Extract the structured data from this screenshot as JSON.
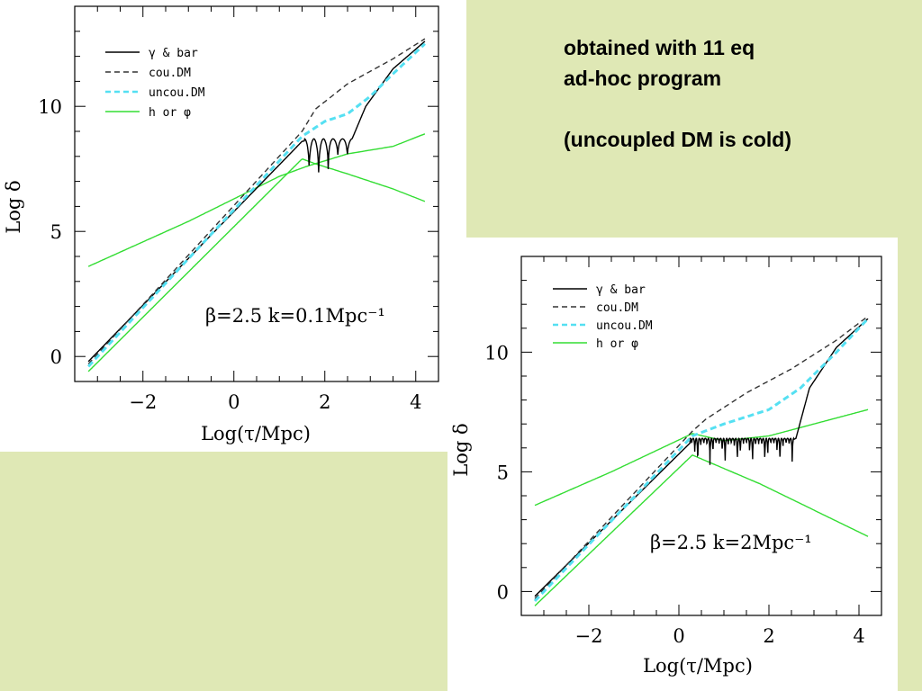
{
  "notes": {
    "line1": "obtained with 11 eq",
    "line2": "ad-hoc program",
    "line3": "(uncoupled DM is cold)"
  },
  "colors": {
    "background": "#dfe8b5",
    "panel": "#ffffff",
    "gamma_bar": "#000000",
    "cou_dm": "#333333",
    "uncou_dm": "#55e0f2",
    "h_phi": "#33dd33"
  },
  "chart_data": [
    {
      "type": "line",
      "title": "",
      "xlabel": "Log(τ/Mpc)",
      "ylabel": "Log δ",
      "xlim": [
        -3.5,
        4.5
      ],
      "ylim": [
        -1,
        14
      ],
      "x_ticks": [
        -2,
        0,
        2,
        4
      ],
      "x_tick_labels": [
        "−2",
        "0",
        "2",
        "4"
      ],
      "y_ticks": [
        0,
        5,
        10
      ],
      "y_tick_labels": [
        "0",
        "5",
        "10"
      ],
      "grid": false,
      "legend_position": "top-left",
      "annotation": "β=2.5   k=0.1Mpc⁻¹",
      "series": [
        {
          "name": "γ & bar",
          "color": "#000000",
          "dash": "solid",
          "oscillating": true,
          "x": [
            -3.2,
            1.5,
            1.8,
            1.8,
            2.0,
            2.0,
            2.15,
            2.15,
            2.3,
            2.3,
            2.45,
            2.45,
            2.6,
            2.9,
            3.5,
            4.2
          ],
          "y": [
            -0.2,
            8.6,
            8.7,
            6.6,
            8.7,
            7.7,
            8.7,
            7.5,
            8.7,
            7.4,
            8.7,
            7.5,
            8.7,
            10.0,
            11.5,
            12.6
          ]
        },
        {
          "name": "cou.DM",
          "color": "#333333",
          "dash": "dash",
          "x": [
            -3.2,
            1.5,
            1.8,
            2.5,
            3.5,
            4.2
          ],
          "y": [
            -0.3,
            9.0,
            9.9,
            10.9,
            11.9,
            12.7
          ]
        },
        {
          "name": "uncou.DM",
          "color": "#55e0f2",
          "dash": "dash",
          "x": [
            -3.2,
            1.5,
            2.0,
            2.5,
            3.0,
            3.5,
            4.2
          ],
          "y": [
            -0.4,
            8.8,
            9.4,
            9.7,
            10.4,
            11.3,
            12.5
          ]
        },
        {
          "name": "h or φ",
          "color": "#33dd33",
          "dash": "solid",
          "branches": true,
          "x": [
            -3.2,
            -1.0,
            1.0,
            1.6,
            2.5,
            3.5,
            4.2
          ],
          "y": [
            3.6,
            5.4,
            7.2,
            7.6,
            8.1,
            8.4,
            8.9
          ]
        }
      ]
    },
    {
      "type": "line",
      "title": "",
      "xlabel": "Log(τ/Mpc)",
      "ylabel": "Log δ",
      "xlim": [
        -3.5,
        4.5
      ],
      "ylim": [
        -1,
        14
      ],
      "x_ticks": [
        -2,
        0,
        2,
        4
      ],
      "x_tick_labels": [
        "−2",
        "0",
        "2",
        "4"
      ],
      "y_ticks": [
        0,
        5,
        10
      ],
      "y_tick_labels": [
        "0",
        "5",
        "10"
      ],
      "grid": false,
      "legend_position": "top-left",
      "annotation": "β=2.5   k=2Mpc⁻¹",
      "series": [
        {
          "name": "γ & bar",
          "color": "#000000",
          "dash": "solid",
          "oscillating": true,
          "x": [
            -3.2,
            0.3,
            0.5,
            0.8,
            1.2,
            1.6,
            2.0,
            2.5,
            2.6,
            2.9,
            3.5,
            4.2
          ],
          "y": [
            -0.2,
            6.3,
            6.4,
            6.3,
            6.3,
            6.3,
            6.3,
            6.3,
            6.4,
            8.5,
            10.2,
            11.4
          ]
        },
        {
          "name": "cou.DM",
          "color": "#333333",
          "dash": "dash",
          "x": [
            -3.2,
            0.3,
            0.6,
            1.5,
            2.5,
            3.5,
            4.2
          ],
          "y": [
            -0.3,
            6.7,
            7.2,
            8.3,
            9.3,
            10.5,
            11.5
          ]
        },
        {
          "name": "uncou.DM",
          "color": "#55e0f2",
          "dash": "dash",
          "x": [
            -3.2,
            0.3,
            1.0,
            2.0,
            2.7,
            3.5,
            4.2
          ],
          "y": [
            -0.4,
            6.5,
            7.0,
            7.6,
            8.5,
            10.0,
            11.4
          ]
        },
        {
          "name": "h or φ",
          "color": "#33dd33",
          "dash": "solid",
          "branches": true,
          "x": [
            -3.2,
            -1.5,
            0.3,
            1.0,
            2.0,
            3.0,
            4.2
          ],
          "y": [
            3.6,
            5.0,
            6.6,
            6.3,
            6.5,
            7.0,
            7.6
          ]
        }
      ]
    }
  ]
}
